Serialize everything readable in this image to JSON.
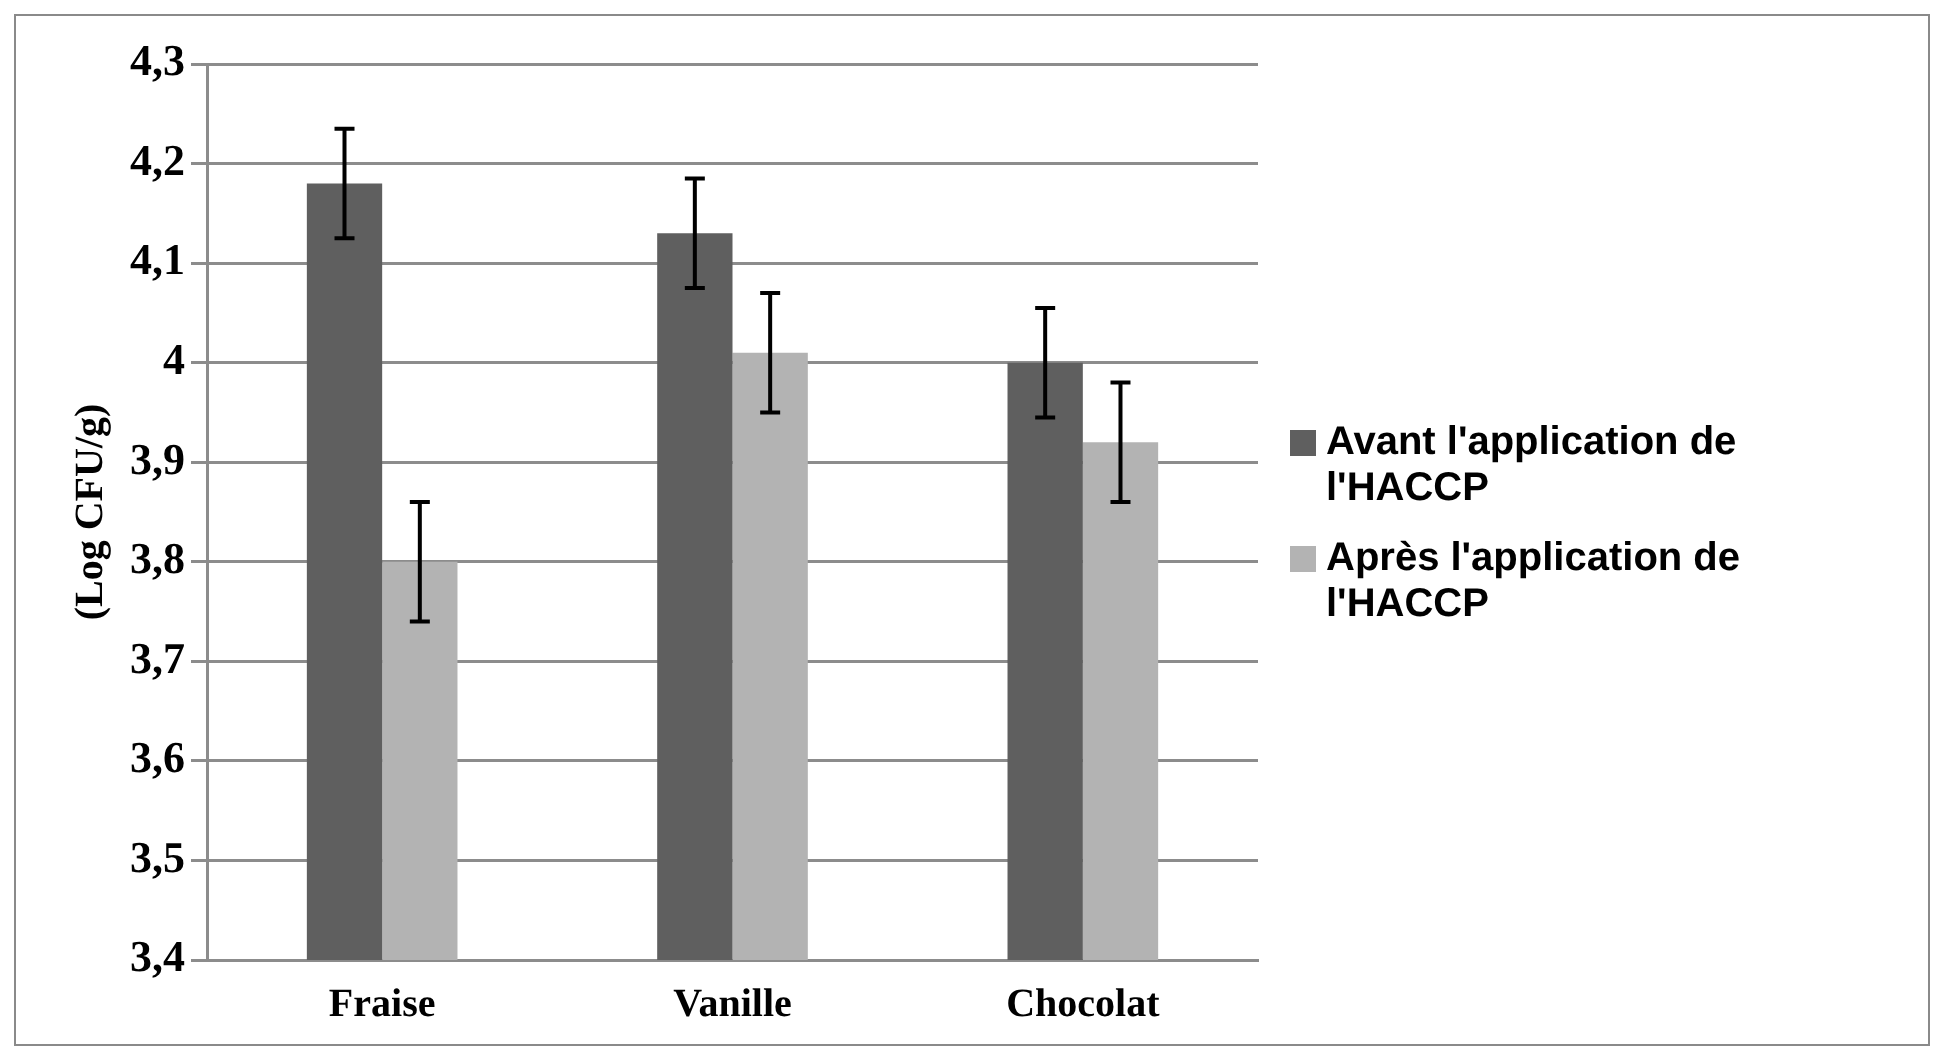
{
  "chart_data": {
    "type": "bar",
    "ylabel": "(Log CFU/g)",
    "categories": [
      "Fraise",
      "Vanille",
      "Chocolat"
    ],
    "series": [
      {
        "name": "Avant l'application de l'HACCP",
        "color": "#5f5f5f",
        "values": [
          4.18,
          4.13,
          4.0
        ],
        "errors": [
          0.055,
          0.055,
          0.055
        ]
      },
      {
        "name": "Après l'application de l'HACCP",
        "color": "#b3b3b3",
        "values": [
          3.8,
          4.01,
          3.92
        ],
        "errors": [
          0.06,
          0.06,
          0.06
        ]
      }
    ],
    "ylim": [
      3.4,
      4.3
    ],
    "yticks": [
      {
        "value": 3.4,
        "label": "3,4"
      },
      {
        "value": 3.5,
        "label": "3,5"
      },
      {
        "value": 3.6,
        "label": "3,6"
      },
      {
        "value": 3.7,
        "label": "3,7"
      },
      {
        "value": 3.8,
        "label": "3,8"
      },
      {
        "value": 3.9,
        "label": "3,9"
      },
      4,
      {
        "value": 4.1,
        "label": "4,1"
      },
      {
        "value": 4.2,
        "label": "4,2"
      },
      {
        "value": 4.3,
        "label": "4,3"
      }
    ],
    "grid": "y",
    "legend": "right"
  }
}
